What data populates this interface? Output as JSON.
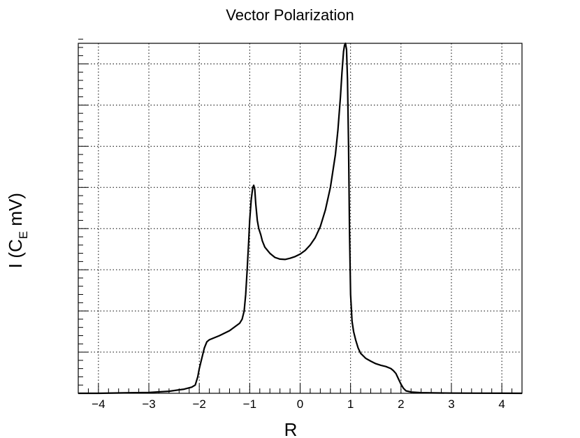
{
  "chart_data": {
    "type": "line",
    "title": "Vector Polarization",
    "xlabel": "R",
    "ylabel": "I (C  mV)",
    "ylabel_parts": {
      "before": "I (C",
      "subscript": "E",
      "after": " mV)"
    },
    "xlim": [
      -4.4,
      4.4
    ],
    "ylim": [
      0,
      8.5
    ],
    "xticks": [
      -4,
      -3,
      -2,
      -1,
      0,
      1,
      2,
      3,
      4
    ],
    "xtick_labels": [
      "−4",
      "−3",
      "−2",
      "−1",
      "0",
      "1",
      "2",
      "3",
      "4"
    ],
    "yticks": [
      1,
      2,
      3,
      4,
      5,
      6,
      7,
      8
    ],
    "grid": true,
    "series": [
      {
        "name": "",
        "color": "#000000",
        "x": [
          -4.4,
          -4.0,
          -3.5,
          -3.0,
          -2.6,
          -2.3,
          -2.15,
          -2.08,
          -2.03,
          -2.0,
          -1.95,
          -1.9,
          -1.85,
          -1.8,
          -1.6,
          -1.4,
          -1.2,
          -1.15,
          -1.11,
          -1.08,
          -1.05,
          -1.02,
          -1.0,
          -0.97,
          -0.94,
          -0.92,
          -0.9,
          -0.88,
          -0.85,
          -0.82,
          -0.78,
          -0.75,
          -0.7,
          -0.6,
          -0.5,
          -0.4,
          -0.3,
          -0.2,
          -0.1,
          0.0,
          0.1,
          0.2,
          0.3,
          0.4,
          0.5,
          0.6,
          0.7,
          0.75,
          0.8,
          0.83,
          0.86,
          0.88,
          0.9,
          0.92,
          0.94,
          0.96,
          0.98,
          1.0,
          1.03,
          1.06,
          1.1,
          1.15,
          1.2,
          1.3,
          1.4,
          1.5,
          1.6,
          1.7,
          1.8,
          1.85,
          1.9,
          1.95,
          2.0,
          2.05,
          2.1,
          2.2,
          2.4,
          2.6,
          3.0,
          3.5,
          4.0,
          4.4
        ],
        "y": [
          0.0,
          0.0,
          0.01,
          0.02,
          0.05,
          0.1,
          0.15,
          0.2,
          0.4,
          0.6,
          0.85,
          1.1,
          1.25,
          1.3,
          1.4,
          1.52,
          1.7,
          1.8,
          2.0,
          2.4,
          3.0,
          3.7,
          4.2,
          4.7,
          5.0,
          5.05,
          4.95,
          4.6,
          4.2,
          4.0,
          3.85,
          3.7,
          3.55,
          3.4,
          3.3,
          3.26,
          3.25,
          3.28,
          3.32,
          3.38,
          3.47,
          3.6,
          3.78,
          4.05,
          4.45,
          5.0,
          5.8,
          6.4,
          7.2,
          7.8,
          8.3,
          8.45,
          8.5,
          8.35,
          7.6,
          6.0,
          3.9,
          2.4,
          1.75,
          1.5,
          1.3,
          1.1,
          0.97,
          0.85,
          0.78,
          0.72,
          0.68,
          0.65,
          0.6,
          0.55,
          0.48,
          0.35,
          0.22,
          0.12,
          0.06,
          0.03,
          0.015,
          0.01,
          0.005,
          0.003,
          0.002,
          0.0
        ]
      }
    ]
  }
}
